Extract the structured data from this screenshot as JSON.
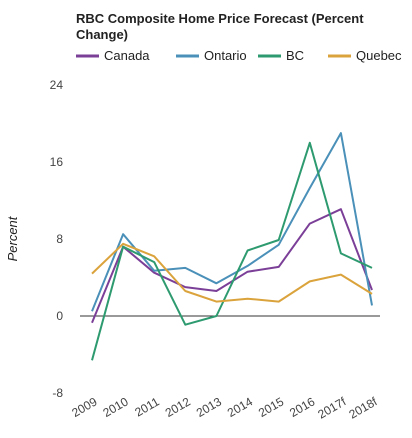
{
  "chart_data": {
    "type": "line",
    "title": "RBC Composite Home Price Forecast (Percent Change)",
    "xlabel": "",
    "ylabel": "Percent",
    "ylim": [
      -8,
      24
    ],
    "yticks": [
      -8,
      0,
      8,
      16,
      24
    ],
    "grid": "horizontal zero line only",
    "legend": "top",
    "categories": [
      "2009",
      "2010",
      "2011",
      "2012",
      "2013",
      "2014",
      "2015",
      "2016",
      "2017f",
      "2018f"
    ],
    "series": [
      {
        "name": "Canada",
        "color": "#7b3f98",
        "values": [
          -0.7,
          7.2,
          4.5,
          3.0,
          2.6,
          4.6,
          5.1,
          9.6,
          11.1,
          2.7
        ]
      },
      {
        "name": "Ontario",
        "color": "#4a90b8",
        "values": [
          0.5,
          8.5,
          4.7,
          5.0,
          3.4,
          5.2,
          7.4,
          13.3,
          19.0,
          1.1
        ]
      },
      {
        "name": "BC",
        "color": "#2e9a6f",
        "values": [
          -4.6,
          7.2,
          5.6,
          -0.9,
          0.0,
          6.8,
          7.9,
          18.0,
          6.5,
          5.0
        ]
      },
      {
        "name": "Quebec",
        "color": "#dba33c",
        "values": [
          4.4,
          7.5,
          6.2,
          2.6,
          1.5,
          1.8,
          1.5,
          3.6,
          4.3,
          2.3
        ]
      }
    ]
  }
}
